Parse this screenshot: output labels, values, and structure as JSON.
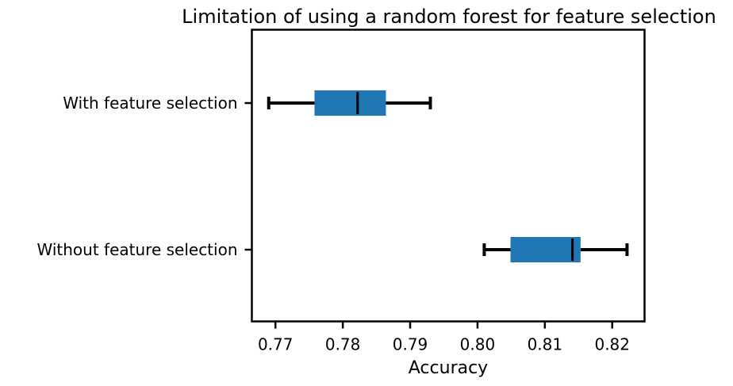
{
  "chart_data": {
    "type": "box",
    "orientation": "horizontal",
    "title": "Limitation of using a random forest for feature selection",
    "xlabel": "Accuracy",
    "ylabel": "",
    "xlim": [
      0.7665,
      0.8248
    ],
    "xticks": [
      0.77,
      0.78,
      0.79,
      0.8,
      0.81,
      0.82
    ],
    "xtick_labels": [
      "0.77",
      "0.78",
      "0.79",
      "0.80",
      "0.81",
      "0.82"
    ],
    "categories": [
      "With feature selection",
      "Without feature selection"
    ],
    "boxes": [
      {
        "label": "With feature selection",
        "whisker_low": 0.769,
        "q1": 0.7758,
        "median": 0.7822,
        "q3": 0.7864,
        "whisker_high": 0.793
      },
      {
        "label": "Without feature selection",
        "whisker_low": 0.801,
        "q1": 0.8049,
        "median": 0.8141,
        "q3": 0.8153,
        "whisker_high": 0.8222
      }
    ],
    "grid": false,
    "box_color": "#1f77b4",
    "line_color": "#000000"
  }
}
